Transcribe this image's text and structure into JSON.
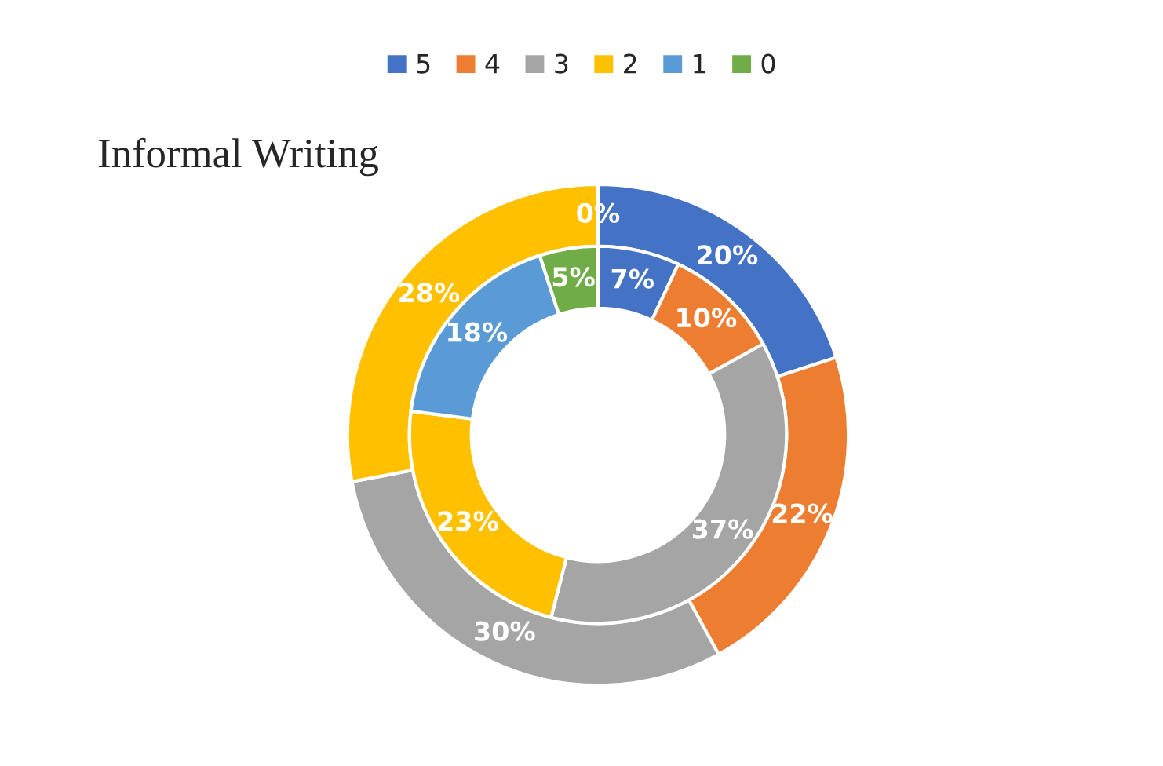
{
  "chart_data": {
    "type": "donut",
    "title": "Informal Writing",
    "categories": [
      "5",
      "4",
      "3",
      "2",
      "1",
      "0"
    ],
    "colors": [
      "#4472c4",
      "#ed7d31",
      "#a5a5a5",
      "#ffc000",
      "#5b9bd5",
      "#70ad47"
    ],
    "series": [
      {
        "values": [
          20,
          22,
          30,
          28,
          0,
          0
        ],
        "value_labels": [
          "20%",
          "22%",
          "30%",
          "28%",
          null,
          "0%"
        ]
      },
      {
        "values": [
          7,
          10,
          37,
          23,
          18,
          5
        ],
        "value_labels": [
          "7%",
          "10%",
          "37%",
          "23%",
          "18%",
          "5%"
        ]
      }
    ],
    "legend": "top"
  }
}
